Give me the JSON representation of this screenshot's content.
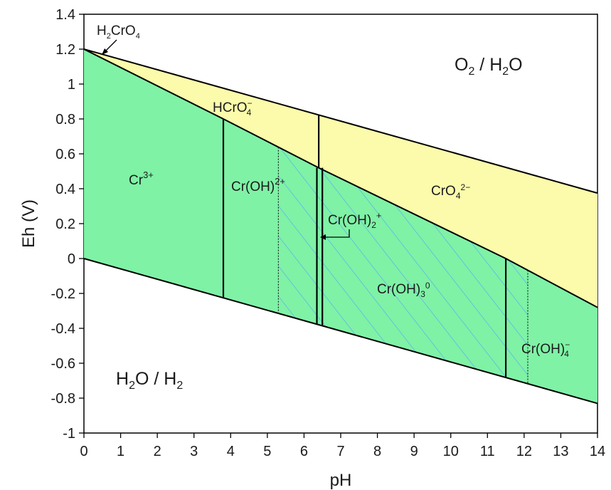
{
  "chart_data": {
    "type": "area",
    "xlabel": "pH",
    "ylabel": "Eh (V)",
    "xlim": [
      0,
      14
    ],
    "ylim": [
      -1,
      1.4
    ],
    "x_ticks": [
      "0",
      "1",
      "2",
      "3",
      "4",
      "5",
      "6",
      "7",
      "8",
      "9",
      "10",
      "11",
      "12",
      "13",
      "14"
    ],
    "y_ticks": [
      "-1",
      "-0.8",
      "-0.6",
      "-0.4",
      "-0.2",
      "0",
      "0.2",
      "0.4",
      "0.6",
      "0.8",
      "1",
      "1.2",
      "1.4"
    ],
    "grid": false,
    "colors": {
      "cr3_species": "#7ff2a6",
      "cr6_species": "#fbfbab",
      "hatch": "#5fb6e6",
      "line": "#000000"
    },
    "boundaries": {
      "water_oxidation": [
        [
          0,
          1.2
        ],
        [
          14,
          0.375
        ]
      ],
      "water_reduction": [
        [
          0,
          0
        ],
        [
          14,
          -0.83
        ]
      ],
      "cr_redox": [
        [
          0,
          1.2
        ],
        [
          3.8,
          0.8
        ],
        [
          6.4,
          0.52
        ],
        [
          11.5,
          0.0
        ],
        [
          14,
          -0.28
        ]
      ],
      "hcro4_cro4": [
        [
          6.4,
          0.52
        ],
        [
          6.4,
          0.825
        ]
      ],
      "cr3_croh2": [
        [
          3.8,
          -0.225
        ],
        [
          3.8,
          0.8
        ]
      ],
      "croh_croh2plus": [
        [
          6.35,
          -0.375
        ],
        [
          6.35,
          0.52
        ]
      ],
      "croh2plus_croh3": [
        [
          6.5,
          -0.385
        ],
        [
          6.5,
          0.52
        ]
      ],
      "croh3_croh4": [
        [
          11.5,
          -0.68
        ],
        [
          11.5,
          0.0
        ]
      ]
    },
    "hatched_range": {
      "x": [
        5.3,
        12.1
      ]
    },
    "labels": {
      "h2cro4": {
        "base": "H",
        "sub1": "2",
        "mid": "CrO",
        "sub2": "4"
      },
      "o2_h2o": {
        "a": "O",
        "sub": "2",
        "b": " / H",
        "sub2": "2",
        "c": "O"
      },
      "hcro4": {
        "base": "HCrO",
        "sub": "4",
        "sup": "−"
      },
      "cr3": {
        "base": "Cr",
        "sup": "3+"
      },
      "croh2": {
        "base": "Cr(OH)",
        "sup": "2+"
      },
      "cro4": {
        "base": "CrO",
        "sub": "4",
        "sup": "2−"
      },
      "croh2p": {
        "base": "Cr(OH)",
        "sub": "2",
        "sup": "+"
      },
      "croh3": {
        "base": "Cr(OH)",
        "sub": "3",
        "sup": "0"
      },
      "croh4": {
        "base": "Cr(OH)",
        "sub": "4",
        "sup": "−"
      },
      "h2o_h2": {
        "a": "H",
        "sub": "2",
        "b": "O / H",
        "sub2": "2"
      }
    }
  }
}
